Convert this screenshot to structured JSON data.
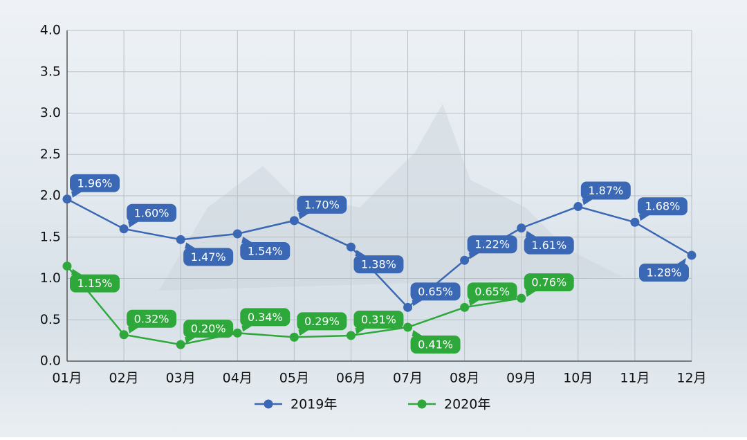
{
  "chart_data": {
    "type": "line",
    "categories": [
      "01月",
      "02月",
      "03月",
      "04月",
      "05月",
      "06月",
      "07月",
      "08月",
      "09月",
      "10月",
      "11月",
      "12月"
    ],
    "series": [
      {
        "name": "2019年",
        "color": "#3b68b4",
        "values": [
          1.96,
          1.6,
          1.47,
          1.54,
          1.7,
          1.38,
          0.65,
          1.22,
          1.61,
          1.87,
          1.68,
          1.28
        ],
        "value_labels": [
          "1.96%",
          "1.60%",
          "1.47%",
          "1.54%",
          "1.70%",
          "1.38%",
          "0.65%",
          "1.22%",
          "1.61%",
          "1.87%",
          "1.68%",
          "1.28%"
        ]
      },
      {
        "name": "2020年",
        "color": "#2ea83a",
        "values": [
          1.15,
          0.32,
          0.2,
          0.34,
          0.29,
          0.31,
          0.41,
          0.65,
          0.76,
          null,
          null,
          null
        ],
        "value_labels": [
          "1.15%",
          "0.32%",
          "0.20%",
          "0.34%",
          "0.29%",
          "0.31%",
          "0.41%",
          "0.65%",
          "0.76%",
          null,
          null,
          null
        ]
      }
    ],
    "ylim": [
      0,
      4
    ],
    "yticks": [
      {
        "value": 0,
        "label": "0.0"
      },
      0.5,
      {
        "value": 1,
        "label": "1.0"
      },
      1.5,
      {
        "value": 2,
        "label": "2.0"
      },
      2.5,
      {
        "value": 3,
        "label": "3.0"
      },
      3.5,
      {
        "value": 4,
        "label": "4.0"
      }
    ],
    "grid": true,
    "legend": "bottom"
  }
}
